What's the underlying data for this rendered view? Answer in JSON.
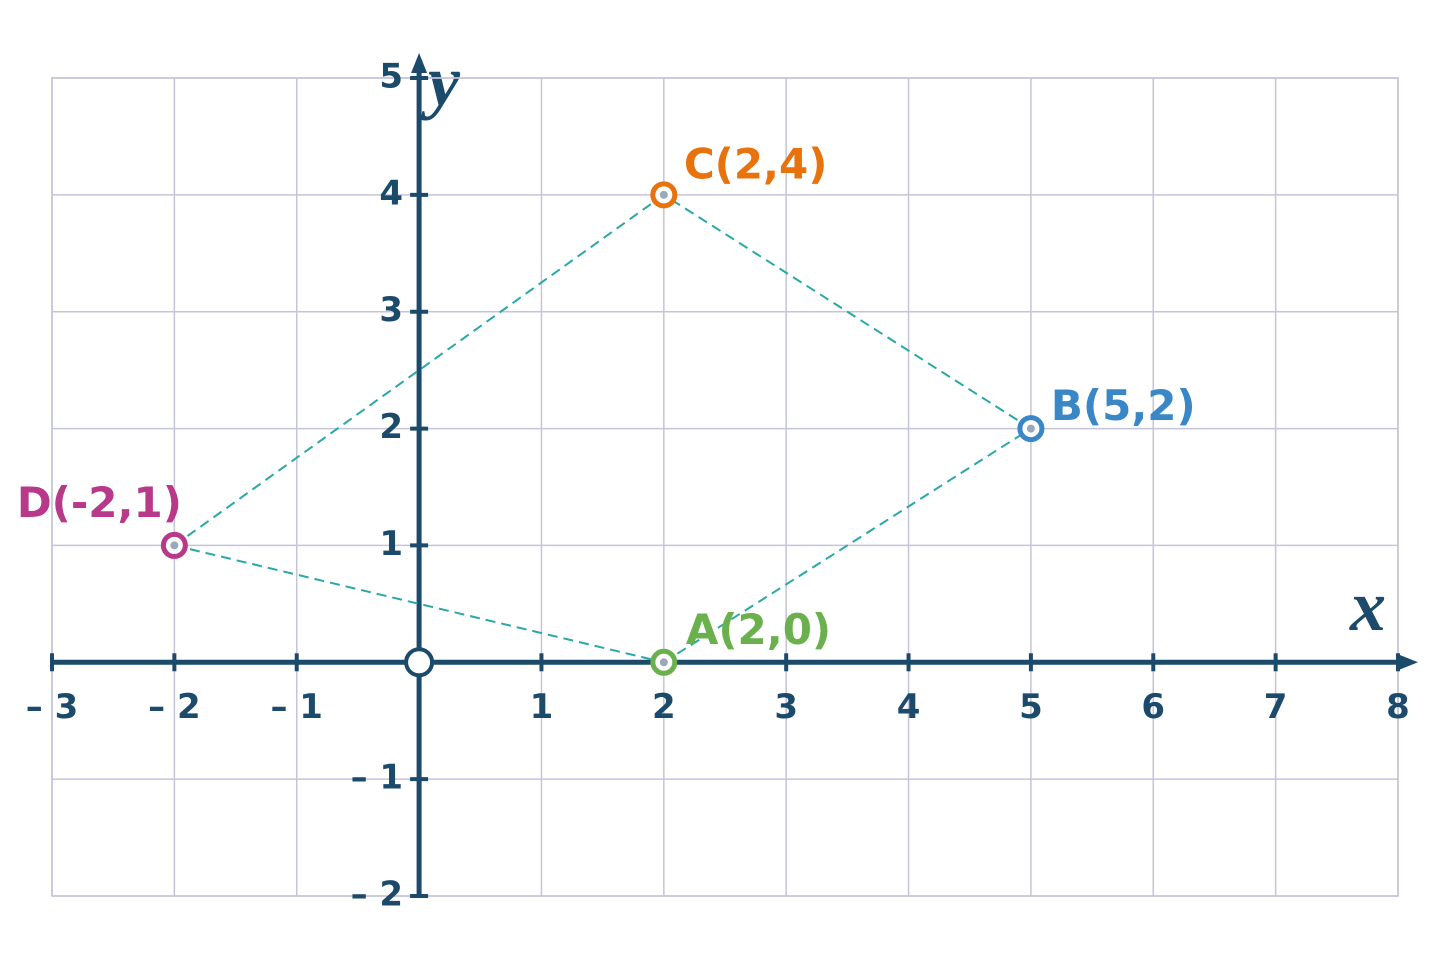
{
  "chart_data": {
    "type": "scatter",
    "x_label": "x",
    "y_label": "y",
    "xlim": [
      -3,
      8
    ],
    "ylim": [
      -2,
      5
    ],
    "xticks": [
      {
        "value": -3,
        "label": "– 3"
      },
      {
        "value": -2,
        "label": "– 2"
      },
      {
        "value": -1,
        "label": "– 1"
      },
      1,
      2,
      3,
      4,
      5,
      6,
      7,
      8
    ],
    "yticks": [
      {
        "value": -2,
        "label": "– 2"
      },
      {
        "value": -1,
        "label": "– 1"
      },
      1,
      2,
      3,
      4,
      5
    ],
    "grid": true,
    "polygon_color": "#2aa8a8",
    "series": [
      {
        "name": "A(2,0)",
        "color": "#6ab04c",
        "x": [
          2
        ],
        "values": [
          0
        ]
      },
      {
        "name": "B(5,2)",
        "color": "#3a87c8",
        "x": [
          5
        ],
        "values": [
          2
        ]
      },
      {
        "name": "C(2,4)",
        "color": "#e8720c",
        "x": [
          2
        ],
        "values": [
          4
        ]
      },
      {
        "name": "D(-2,1)",
        "color": "#b8388a",
        "x": [
          -2
        ],
        "values": [
          1
        ]
      }
    ]
  }
}
